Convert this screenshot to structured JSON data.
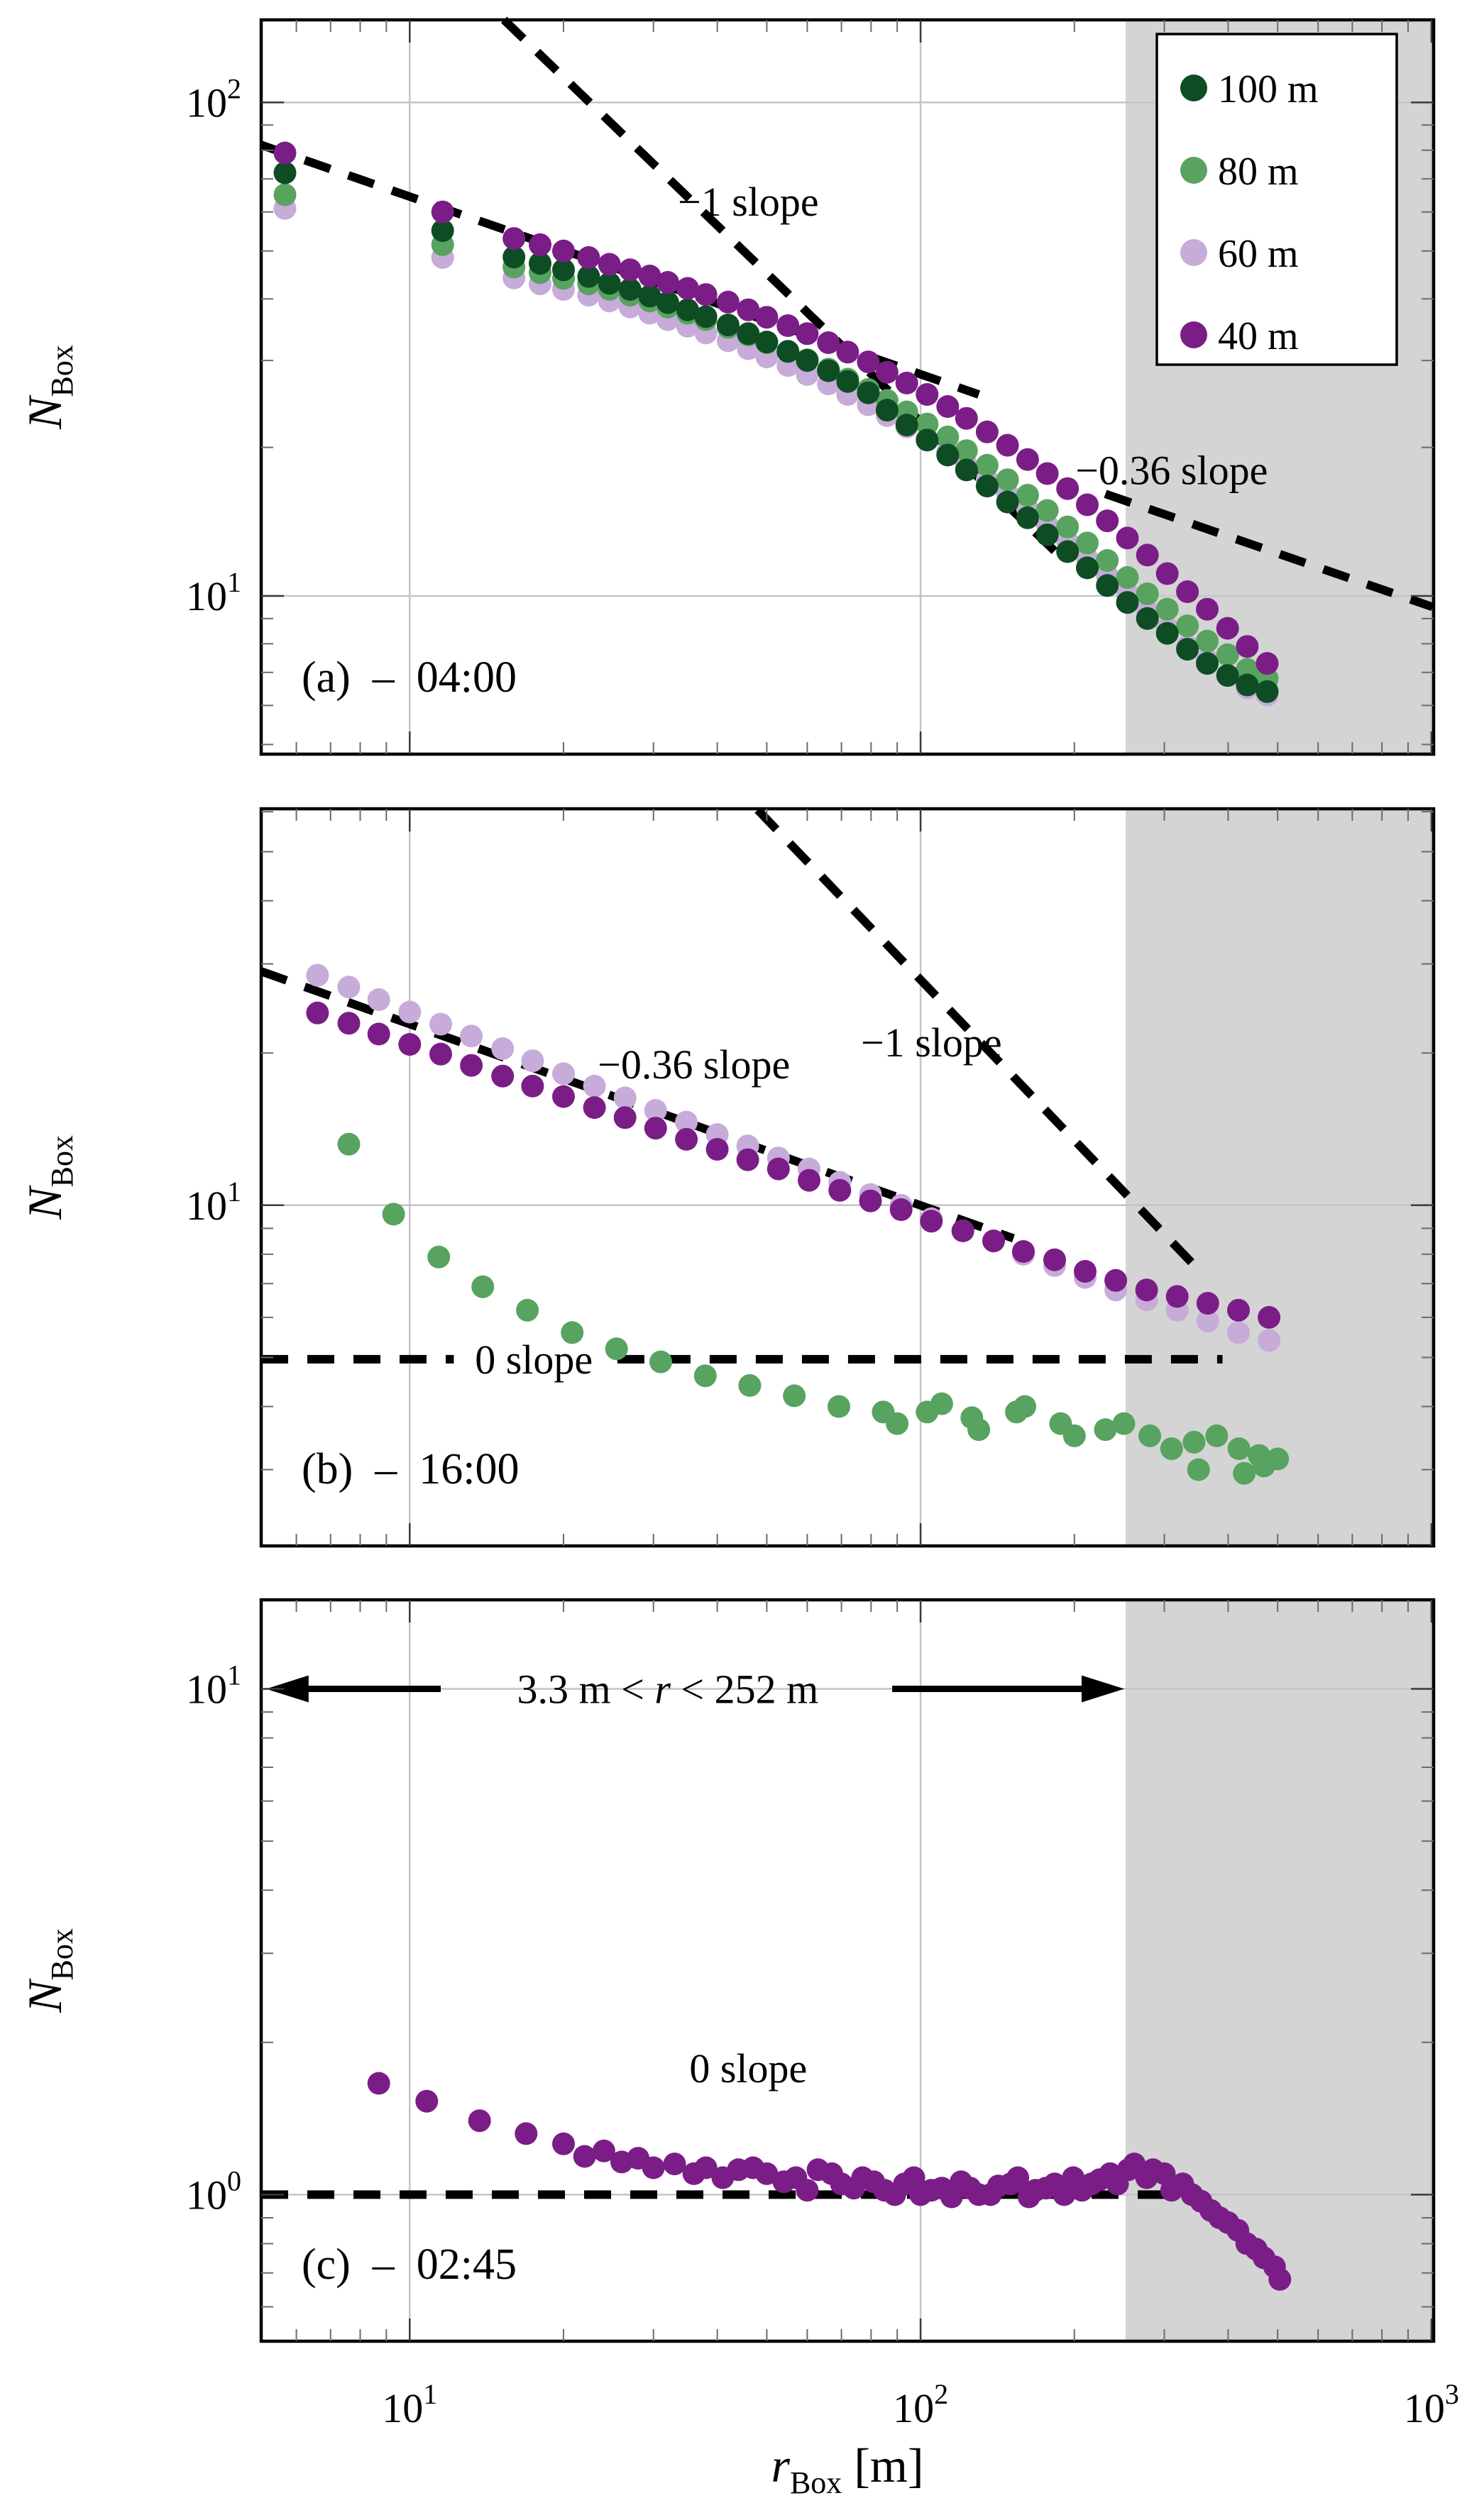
{
  "figure": {
    "colors": {
      "background": "#ffffff",
      "axis": "#000000",
      "grid": "#c4c4c4",
      "shaded_region": "#d4d4d4",
      "dark_green": "#0e4d23",
      "green": "#57a35f",
      "lavender": "#c7abd9",
      "purple": "#7b1d87"
    },
    "xlim": [
      5.12,
      1010
    ],
    "x_ticks": [
      {
        "value": 10,
        "base": "10",
        "exp": "1"
      },
      {
        "value": 100,
        "base": "10",
        "exp": "2"
      },
      {
        "value": 1000,
        "base": "10",
        "exp": "3"
      }
    ],
    "x_axis_title": {
      "var": "r",
      "sub": "Box",
      "post": " [m]"
    },
    "y_axis_title": {
      "var": "N",
      "sub": "Box"
    },
    "shaded_region": {
      "from": 252,
      "to": 1010
    },
    "legend": {
      "items": [
        {
          "label": "100 m",
          "color": "#0e4d23"
        },
        {
          "label": "80 m",
          "color": "#57a35f"
        },
        {
          "label": "60 m",
          "color": "#c7abd9"
        },
        {
          "label": "40 m",
          "color": "#7b1d87"
        }
      ]
    }
  },
  "chart_data": [
    {
      "id": "a",
      "type": "scatter",
      "tag": "(a)",
      "time": "04:00",
      "ylim": [
        4.78,
        147
      ],
      "y_ticks": [
        {
          "value": 100,
          "base": "10",
          "exp": "2"
        },
        {
          "value": 10,
          "base": "10",
          "exp": "1"
        }
      ],
      "ref_lines": [
        {
          "label": "−1 slope",
          "slope": -1,
          "p1": [
            15.3,
            147
          ],
          "p2": [
            185,
            12.2
          ],
          "label_at": [
            46,
            63
          ]
        },
        {
          "label": null,
          "slope": -0.36,
          "p1": [
            5.12,
            82
          ],
          "p2": [
            130,
            25.6
          ]
        },
        {
          "label": "−0.36 slope",
          "slope": -0.36,
          "p1": [
            230,
            16.1
          ],
          "p2": [
            1005,
            9.5
          ],
          "label_at": [
            310,
            18
          ]
        }
      ],
      "series": [
        {
          "name": "60 m",
          "color": "#c7abd9",
          "r": [
            5.7,
            11.6,
            16,
            18,
            20,
            22.4,
            24.6,
            27,
            29.5,
            32,
            35,
            38,
            42,
            46,
            50,
            55,
            60,
            66,
            72,
            79,
            86,
            94,
            103,
            113,
            123,
            135,
            148,
            162,
            177,
            194,
            212,
            232,
            254,
            278,
            304,
            333,
            364,
            399,
            436,
            477
          ],
          "N": [
            61,
            48.5,
            44.1,
            42.9,
            41.8,
            40.7,
            39.6,
            38.5,
            37.4,
            36.3,
            35.2,
            34.1,
            32.9,
            31.7,
            30.5,
            29.3,
            28.1,
            26.9,
            25.6,
            24.4,
            23.2,
            22,
            20.8,
            19.6,
            18.4,
            17.2,
            16.1,
            15,
            13.9,
            12.9,
            11.9,
            11,
            10.1,
            9.3,
            8.6,
            7.9,
            7.4,
            6.9,
            6.5,
            6.3
          ]
        },
        {
          "name": "80 m",
          "color": "#57a35f",
          "r": [
            5.7,
            11.6,
            16,
            18,
            20,
            22.4,
            24.6,
            27,
            29.5,
            32,
            35,
            38,
            42,
            46,
            50,
            55,
            60,
            66,
            72,
            79,
            86,
            94,
            103,
            113,
            123,
            135,
            148,
            162,
            177,
            194,
            212,
            232,
            254,
            278,
            304,
            333,
            364,
            399,
            436,
            477
          ],
          "N": [
            65,
            51.5,
            46.4,
            45.2,
            44,
            42.9,
            41.8,
            40.7,
            39.6,
            38.5,
            37.4,
            36.3,
            35,
            33.8,
            32.6,
            31.3,
            30.1,
            28.8,
            27.5,
            26.2,
            24.9,
            23.6,
            22.3,
            21,
            19.7,
            18.4,
            17.2,
            16,
            14.9,
            13.8,
            12.8,
            11.8,
            10.9,
            10.1,
            9.4,
            8.7,
            8.1,
            7.6,
            7.1,
            6.8
          ]
        },
        {
          "name": "100 m",
          "color": "#0e4d23",
          "r": [
            5.7,
            11.6,
            16,
            18,
            20,
            22.4,
            24.6,
            27,
            29.5,
            32,
            35,
            38,
            42,
            46,
            50,
            55,
            60,
            66,
            72,
            79,
            86,
            94,
            103,
            113,
            123,
            135,
            148,
            162,
            177,
            194,
            212,
            232,
            254,
            278,
            304,
            333,
            364,
            399,
            436,
            477
          ],
          "N": [
            72,
            55,
            48.6,
            47.2,
            45.8,
            44.4,
            43,
            41.8,
            40.5,
            39.3,
            38,
            36.8,
            35.4,
            34,
            32.7,
            31.3,
            30,
            28.6,
            27.2,
            25.8,
            23.8,
            22.2,
            20.7,
            19.3,
            18,
            16.7,
            15.5,
            14.4,
            13.3,
            12.3,
            11.4,
            10.5,
            9.7,
            9,
            8.4,
            7.8,
            7.3,
            6.9,
            6.6,
            6.4
          ]
        },
        {
          "name": "40 m",
          "color": "#7b1d87",
          "r": [
            5.7,
            11.6,
            16,
            18,
            20,
            22.4,
            24.6,
            27,
            29.5,
            32,
            35,
            38,
            42,
            46,
            50,
            55,
            60,
            66,
            72,
            79,
            86,
            94,
            103,
            113,
            123,
            135,
            148,
            162,
            177,
            194,
            212,
            232,
            254,
            278,
            304,
            333,
            364,
            399,
            436,
            477
          ],
          "N": [
            79,
            60,
            53,
            51.5,
            50,
            48.5,
            47,
            45.8,
            44.5,
            43.2,
            42,
            40.8,
            39.4,
            38,
            36.7,
            35.3,
            34,
            32.6,
            31.2,
            29.8,
            28.4,
            27,
            25.6,
            24.2,
            22.9,
            21.5,
            20.2,
            18.9,
            17.7,
            16.5,
            15.3,
            14.2,
            13.1,
            12.1,
            11.1,
            10.2,
            9.4,
            8.6,
            7.9,
            7.3
          ]
        }
      ]
    },
    {
      "id": "b",
      "type": "scatter",
      "tag": "(b)",
      "time": "16:00",
      "ylim": [
        2.12,
        60.8
      ],
      "y_ticks": [
        {
          "value": 10,
          "base": "10",
          "exp": "1"
        }
      ],
      "ref_lines": [
        {
          "label": "−0.36 slope",
          "slope": -0.36,
          "p1": [
            5.12,
            29
          ],
          "p2": [
            152,
            8.6
          ],
          "label_at": [
            36,
            19
          ]
        },
        {
          "label": "−1 slope",
          "slope": -1,
          "p1": [
            48,
            60.5
          ],
          "p2": [
            357,
            7.3
          ],
          "label_at": [
            105,
            21
          ]
        },
        {
          "label": "0 slope",
          "slope": 0,
          "p1": [
            5.12,
            4.96
          ],
          "p2": [
            390,
            4.96
          ],
          "gap": [
            12.2,
            25.5
          ],
          "label_at": [
            17.5,
            4.96
          ]
        }
      ],
      "series": [
        {
          "name": "60 m",
          "color": "#c7abd9",
          "r": [
            6.6,
            7.6,
            8.7,
            10,
            11.5,
            13.2,
            15.2,
            17.4,
            20,
            23,
            26.4,
            30.3,
            34.8,
            40,
            45.9,
            52.7,
            60.5,
            69.5,
            79.8,
            91.6,
            105,
            121,
            139,
            159,
            183,
            210,
            241,
            277,
            318,
            365,
            419,
            481
          ],
          "N": [
            28.5,
            27,
            25.5,
            24.1,
            22.8,
            21.6,
            20.4,
            19.3,
            18.2,
            17.2,
            16.3,
            15.4,
            14.6,
            13.8,
            13.1,
            12.4,
            11.8,
            11.1,
            10.5,
            10,
            9.4,
            8.9,
            8.5,
            8,
            7.6,
            7.2,
            6.8,
            6.5,
            6.2,
            5.9,
            5.6,
            5.4
          ]
        },
        {
          "name": "80 m",
          "color": "#57a35f",
          "r": [
            7.6,
            9.3,
            11.4,
            13.9,
            17,
            20.8,
            25.4,
            31,
            37.9,
            46.3,
            56.6,
            69.2,
            84.5,
            90,
            103,
            110,
            126,
            130,
            154,
            160,
            188,
            200,
            230,
            250,
            281,
            310,
            343,
            350,
            380,
            420,
            430,
            460,
            470,
            500
          ],
          "N": [
            13.2,
            9.6,
            7.9,
            6.9,
            6.2,
            5.6,
            5.2,
            4.9,
            4.6,
            4.4,
            4.2,
            4,
            3.9,
            3.7,
            3.9,
            4.05,
            3.8,
            3.6,
            3.9,
            4,
            3.7,
            3.5,
            3.6,
            3.7,
            3.5,
            3.3,
            3.4,
            3,
            3.5,
            3.3,
            2.95,
            3.2,
            3.05,
            3.15
          ]
        },
        {
          "name": "40 m",
          "color": "#7b1d87",
          "r": [
            6.6,
            7.6,
            8.7,
            10,
            11.5,
            13.2,
            15.2,
            17.4,
            20,
            23,
            26.4,
            30.3,
            34.8,
            40,
            45.9,
            52.7,
            60.5,
            69.5,
            79.8,
            91.6,
            105,
            121,
            139,
            159,
            183,
            210,
            241,
            277,
            318,
            365,
            419,
            481
          ],
          "N": [
            24,
            22.9,
            21.8,
            20.8,
            19.9,
            18.9,
            18,
            17.2,
            16.4,
            15.6,
            14.9,
            14.2,
            13.5,
            12.9,
            12.3,
            11.8,
            11.2,
            10.7,
            10.2,
            9.8,
            9.3,
            8.9,
            8.5,
            8.1,
            7.8,
            7.4,
            7.1,
            6.8,
            6.6,
            6.4,
            6.2,
            6
          ]
        }
      ]
    },
    {
      "id": "c",
      "type": "scatter",
      "tag": "(c)",
      "time": "02:45",
      "ylim": [
        0.513,
        15
      ],
      "y_ticks": [
        {
          "value": 10,
          "base": "10",
          "exp": "1"
        },
        {
          "value": 1,
          "base": "10",
          "exp": "0"
        }
      ],
      "ref_lines": [
        {
          "label": "0 slope",
          "slope": 0,
          "p1": [
            5.12,
            1.0
          ],
          "p2": [
            330,
            1.0
          ],
          "label_at": [
            46,
            1.78
          ]
        }
      ],
      "range_arrow": {
        "text_pre": "3.3 m < ",
        "text_var": "r",
        "text_post": " < 252 m",
        "N": 10,
        "left_line": [
          5.2,
          11.5
        ],
        "right_line": [
          88,
          252
        ],
        "text_center_r": 32
      },
      "series": [
        {
          "name": "40 m",
          "color": "#7b1d87",
          "r": [
            8.7,
            10.8,
            13.7,
            16.9,
            20,
            22,
            24,
            26,
            28,
            30,
            33,
            36,
            38,
            41,
            44,
            47,
            50,
            54,
            57,
            60,
            63,
            67,
            70,
            74,
            77,
            81,
            85,
            89,
            93,
            97,
            100,
            105,
            110,
            115,
            120,
            125,
            130,
            137,
            142,
            150,
            155,
            163,
            168,
            176,
            183,
            191,
            199,
            207,
            216,
            224,
            235,
            243,
            255,
            262,
            277,
            285,
            300,
            310,
            326,
            340,
            354,
            370,
            385,
            400,
            418,
            435,
            454,
            470,
            493,
            505
          ],
          "N": [
            1.66,
            1.53,
            1.4,
            1.32,
            1.26,
            1.19,
            1.22,
            1.16,
            1.18,
            1.13,
            1.15,
            1.1,
            1.13,
            1.08,
            1.12,
            1.13,
            1.1,
            1.06,
            1.08,
            1.02,
            1.12,
            1.1,
            1.05,
            1.03,
            1.08,
            1.06,
            1.02,
            1,
            1.05,
            1.08,
            1,
            1.02,
            1.03,
            0.99,
            1.06,
            1.03,
            1,
            1,
            1.04,
            1.05,
            1.08,
            0.99,
            1.02,
            1.03,
            1.05,
            1,
            1.08,
            1.02,
            1.05,
            1.07,
            1.1,
            1.05,
            1.12,
            1.15,
            1.08,
            1.12,
            1.1,
            1.02,
            1.05,
            1,
            0.97,
            0.93,
            0.9,
            0.88,
            0.85,
            0.8,
            0.78,
            0.75,
            0.72,
            0.68
          ]
        }
      ]
    }
  ]
}
